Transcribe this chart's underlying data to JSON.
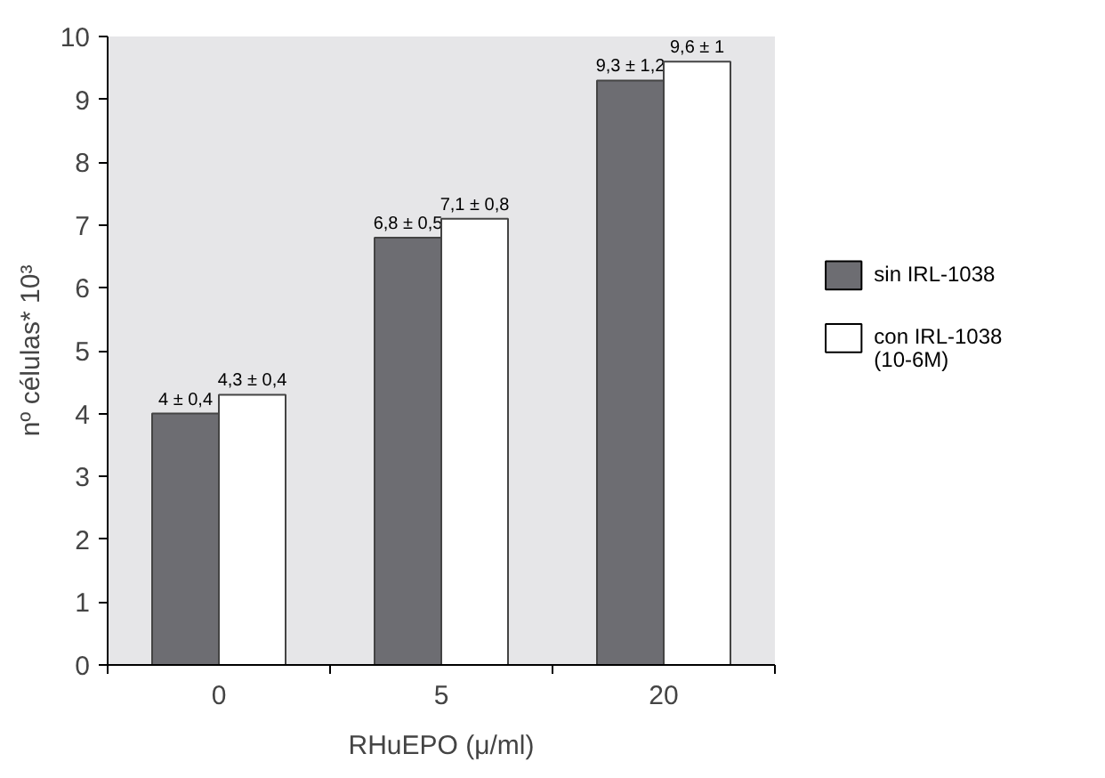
{
  "chart_data": {
    "type": "bar",
    "xlabel": "RHuEPO (μ/ml)",
    "ylabel": "nº células* 10³",
    "categories": [
      "0",
      "5",
      "20"
    ],
    "series": [
      {
        "name": "sin IRL-1038",
        "color": "#6d6d72",
        "values": [
          4,
          6.8,
          9.3
        ],
        "value_labels": [
          "4 ± 0,4",
          "6,8 ± 0,5",
          "9,3 ± 1,2"
        ]
      },
      {
        "name": "con IRL-1038\n(10-6M)",
        "color": "#ffffff",
        "values": [
          4.3,
          7.1,
          9.6
        ],
        "value_labels": [
          "4,3 ± 0,4",
          "7,1 ± 0,8",
          "9,6 ± 1"
        ]
      }
    ],
    "ylim": [
      0,
      10
    ],
    "yticks": [
      0,
      1,
      2,
      3,
      4,
      5,
      6,
      7,
      8,
      9,
      10
    ],
    "legend": "right"
  }
}
